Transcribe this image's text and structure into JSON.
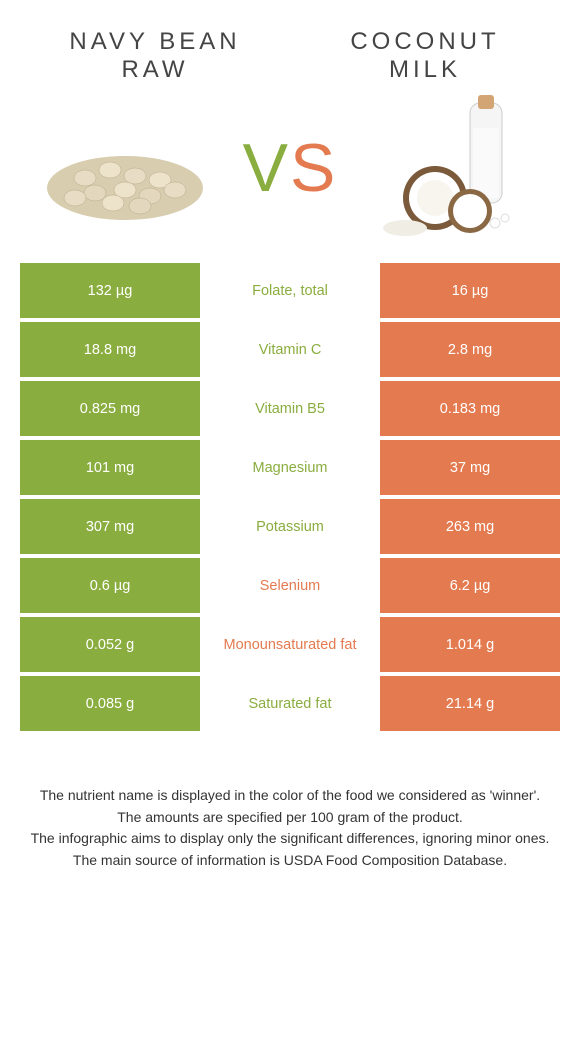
{
  "header": {
    "left_title": "Navy bean raw",
    "right_title": "Coconut milk",
    "vs_v": "V",
    "vs_s": "S"
  },
  "colors": {
    "green": "#8aad3f",
    "orange": "#e47a4f",
    "text": "#333333",
    "white": "#ffffff"
  },
  "rows": [
    {
      "left": "132 µg",
      "label": "Folate, total",
      "right": "16 µg",
      "winner": "left"
    },
    {
      "left": "18.8 mg",
      "label": "Vitamin C",
      "right": "2.8 mg",
      "winner": "left"
    },
    {
      "left": "0.825 mg",
      "label": "Vitamin B5",
      "right": "0.183 mg",
      "winner": "left"
    },
    {
      "left": "101 mg",
      "label": "Magnesium",
      "right": "37 mg",
      "winner": "left"
    },
    {
      "left": "307 mg",
      "label": "Potassium",
      "right": "263 mg",
      "winner": "left"
    },
    {
      "left": "0.6 µg",
      "label": "Selenium",
      "right": "6.2 µg",
      "winner": "right"
    },
    {
      "left": "0.052 g",
      "label": "Monounsaturated fat",
      "right": "1.014 g",
      "winner": "right"
    },
    {
      "left": "0.085 g",
      "label": "Saturated fat",
      "right": "21.14 g",
      "winner": "left"
    }
  ],
  "footer": {
    "line1": "The nutrient name is displayed in the color of the food we considered as 'winner'.",
    "line2": "The amounts are specified per 100 gram of the product.",
    "line3": "The infographic aims to display only the significant differences, ignoring minor ones.",
    "line4": "The main source of information is USDA Food Composition Database."
  }
}
